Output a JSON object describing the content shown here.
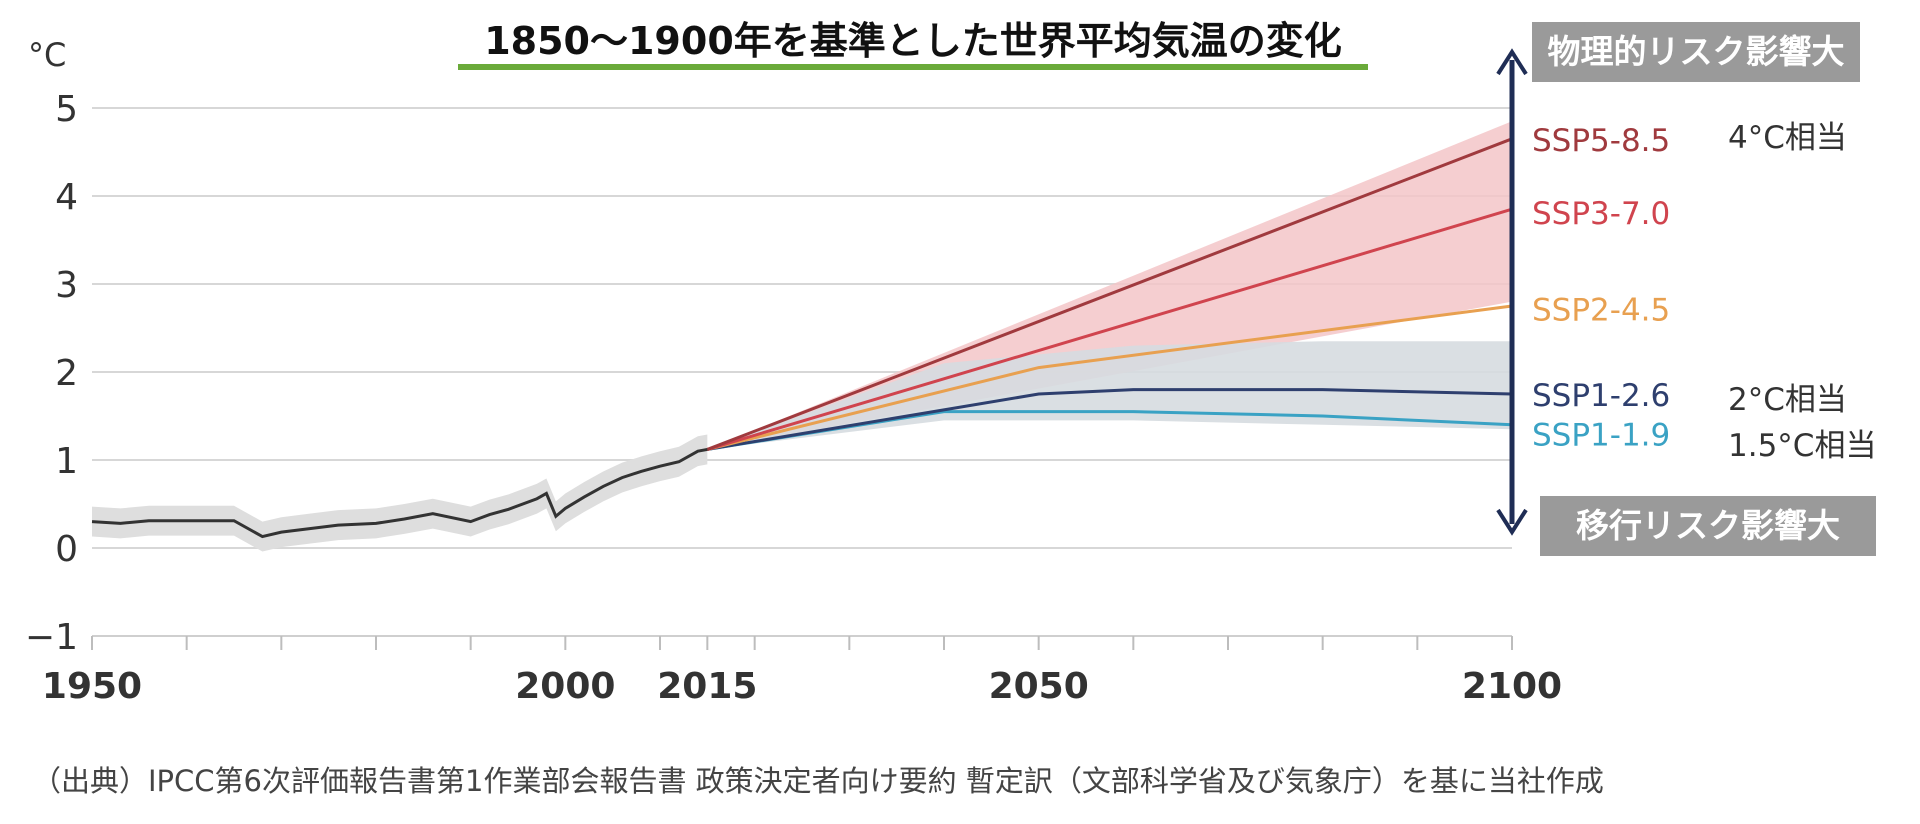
{
  "title": "1850～1900年を基準とした世界平均気温の変化",
  "risk_labels": {
    "physical": "物理的リスク影響大",
    "transition": "移行リスク影響大"
  },
  "equivalents": {
    "ssp585": "4°C相当",
    "ssp126": "2°C相当",
    "ssp119": "1.5°C相当"
  },
  "source": "（出典）IPCC第6次評価報告書第1作業部会報告書 政策決定者向け要約 暫定訳（文部科学省及び気象庁）を基に当社作成",
  "colors": {
    "ssp585": "#a03a3e",
    "ssp370": "#d0444e",
    "ssp245": "#e8a050",
    "ssp126": "#2e3f6e",
    "ssp119": "#3aa2c4",
    "historical": "#333333",
    "red_band": "#f3c6c8",
    "grey_band": "#d6dbe0",
    "hist_band": "#dedede",
    "arrow": "#1f2d55"
  },
  "chart_data": {
    "type": "line",
    "title": "1850～1900年を基準とした世界平均気温の変化",
    "ylabel": "°C",
    "xlabel": "",
    "xlim": [
      1950,
      2100
    ],
    "ylim": [
      -1,
      5
    ],
    "y_ticks": [
      -1,
      0,
      1,
      2,
      3,
      4,
      5
    ],
    "x_tick_labels": [
      "1950",
      "2000",
      "2015",
      "2050",
      "2100"
    ],
    "grid": true,
    "historical": {
      "x": [
        1950,
        1953,
        1956,
        1960,
        1965,
        1968,
        1970,
        1973,
        1976,
        1980,
        1983,
        1986,
        1990,
        1992,
        1994,
        1997,
        1998,
        1999,
        2000,
        2002,
        2004,
        2006,
        2008,
        2010,
        2012,
        2014,
        2015
      ],
      "y": [
        0.3,
        0.28,
        0.31,
        0.31,
        0.31,
        0.13,
        0.18,
        0.22,
        0.26,
        0.28,
        0.33,
        0.39,
        0.3,
        0.38,
        0.44,
        0.56,
        0.62,
        0.36,
        0.45,
        0.58,
        0.7,
        0.8,
        0.87,
        0.93,
        0.98,
        1.1,
        1.12
      ]
    },
    "historical_range": {
      "lower_offset": -0.17,
      "upper_offset": 0.17
    },
    "series": [
      {
        "name": "SSP5-8.5",
        "x": [
          2015,
          2100
        ],
        "y": [
          1.12,
          4.65
        ]
      },
      {
        "name": "SSP3-7.0",
        "x": [
          2015,
          2100
        ],
        "y": [
          1.12,
          3.85
        ]
      },
      {
        "name": "SSP2-4.5",
        "x": [
          2015,
          2050,
          2100
        ],
        "y": [
          1.12,
          2.05,
          2.75
        ]
      },
      {
        "name": "SSP1-2.6",
        "x": [
          2015,
          2050,
          2060,
          2080,
          2100
        ],
        "y": [
          1.12,
          1.75,
          1.8,
          1.8,
          1.75
        ]
      },
      {
        "name": "SSP1-1.9",
        "x": [
          2015,
          2040,
          2060,
          2080,
          2100
        ],
        "y": [
          1.12,
          1.55,
          1.55,
          1.5,
          1.4
        ]
      }
    ],
    "ranges": [
      {
        "name": "SSP3-7.0 / SSP5-8.5 range",
        "x": [
          2015,
          2100
        ],
        "lower": [
          1.12,
          2.8
        ],
        "upper": [
          1.12,
          4.85
        ]
      },
      {
        "name": "SSP1-2.6 / SSP1-1.9 range",
        "x": [
          2015,
          2040,
          2060,
          2080,
          2100
        ],
        "lower": [
          1.12,
          1.45,
          1.45,
          1.4,
          1.35
        ],
        "upper": [
          1.12,
          2.1,
          2.3,
          2.35,
          2.35
        ]
      }
    ]
  }
}
